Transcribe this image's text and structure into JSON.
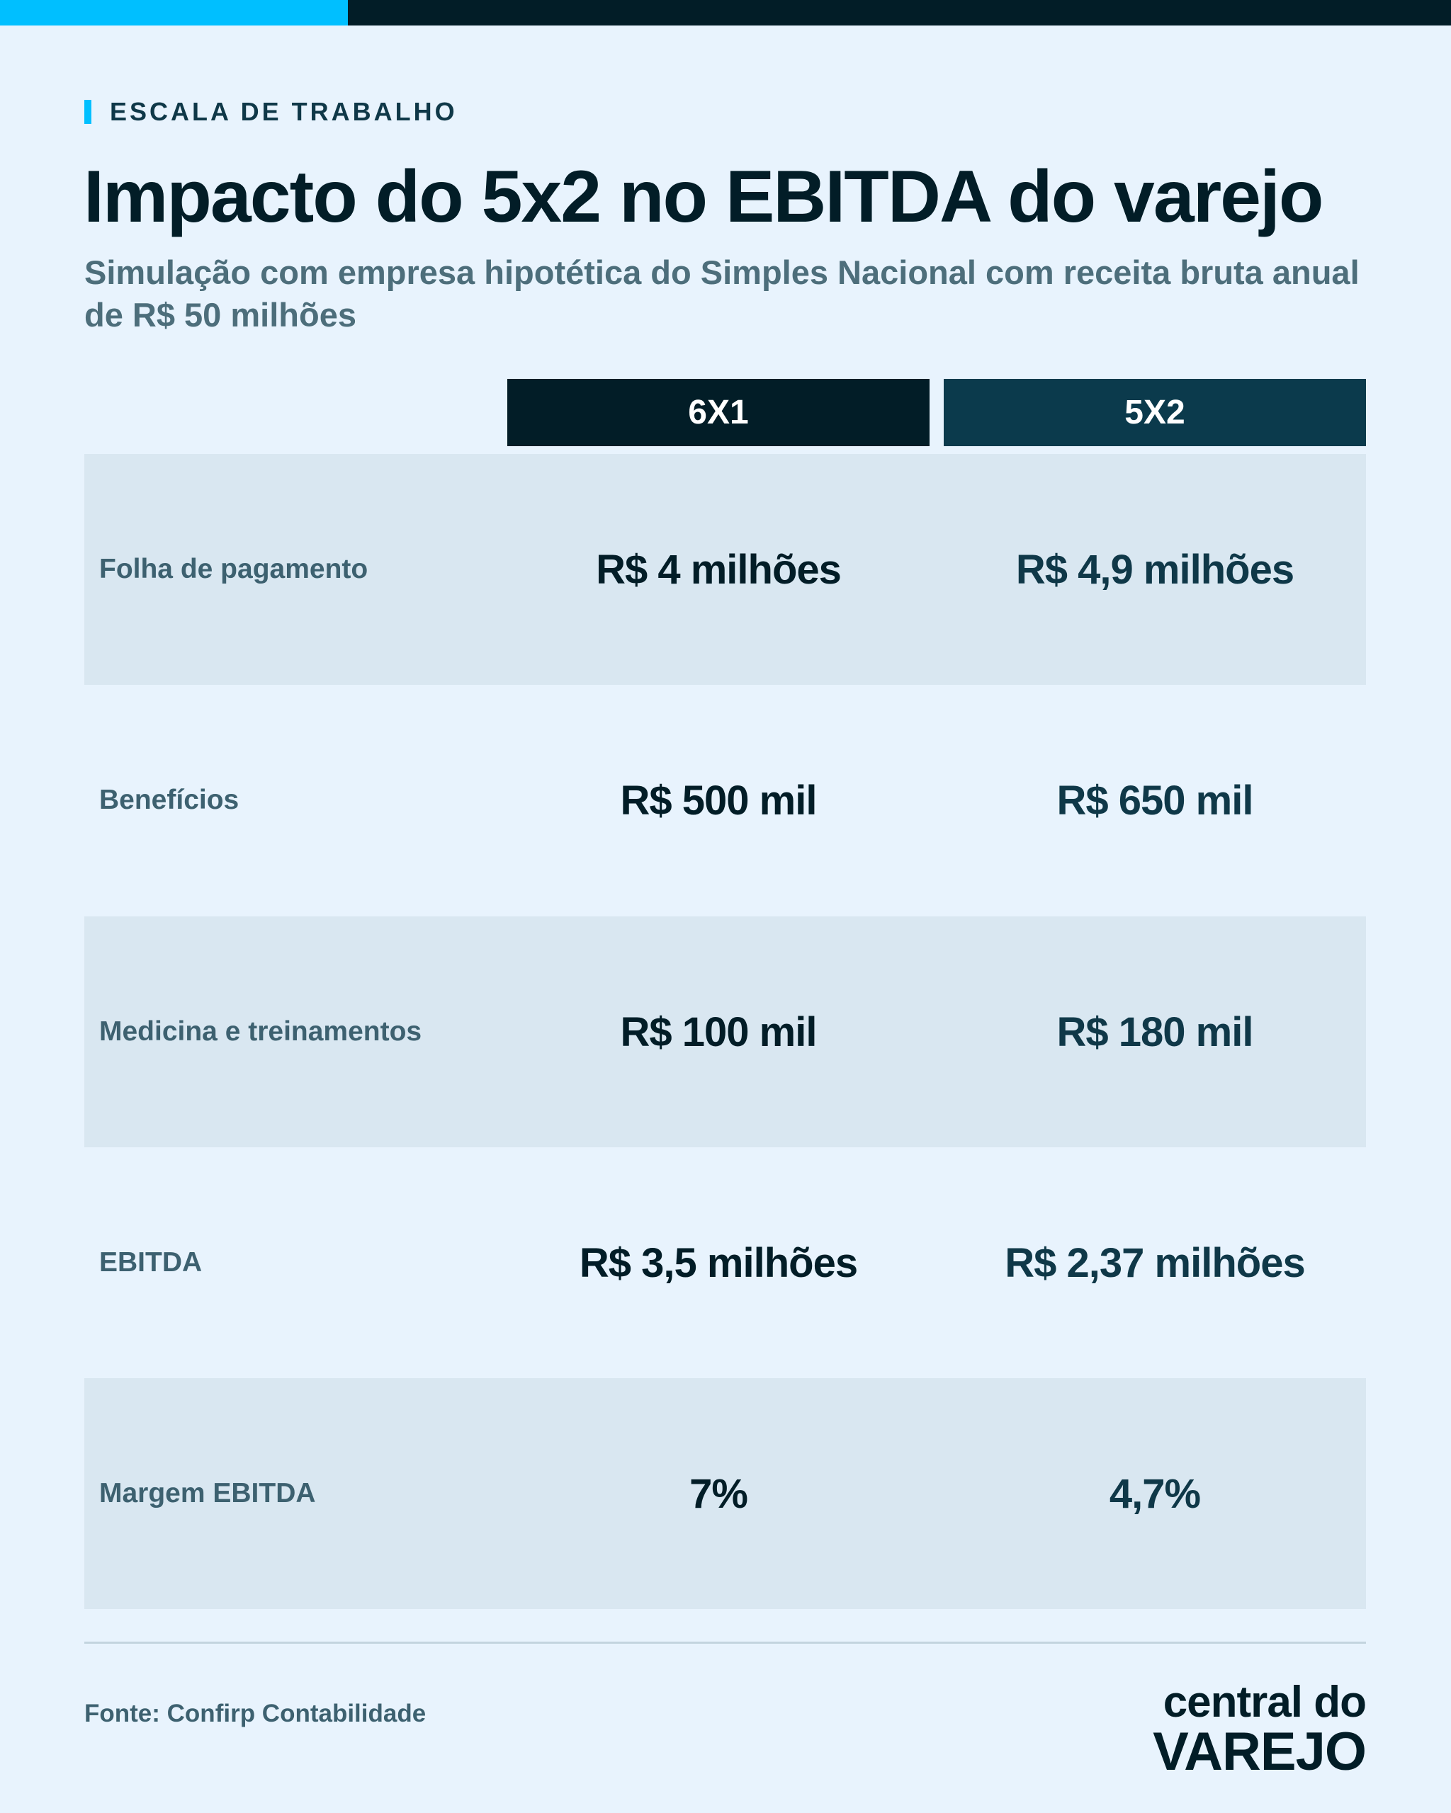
{
  "eyebrow": "ESCALA DE TRABALHO",
  "title": "Impacto do 5x2 no EBITDA do varejo",
  "subtitle": "Simulação com empresa hipotética do Simples Nacional com receita bruta anual de R$ 50 milhões",
  "columns": [
    "6X1",
    "5X2"
  ],
  "rows": [
    {
      "label": "Folha de pagamento",
      "v1": "R$ 4 milhões",
      "v2": "R$ 4,9 milhões"
    },
    {
      "label": "Benefícios",
      "v1": "R$ 500 mil",
      "v2": "R$ 650 mil"
    },
    {
      "label": "Medicina e treinamentos",
      "v1": "R$ 100 mil",
      "v2": "R$ 180 mil"
    },
    {
      "label": "EBITDA",
      "v1": "R$ 3,5 milhões",
      "v2": "R$ 2,37 milhões"
    },
    {
      "label": "Margem EBITDA",
      "v1": "7%",
      "v2": "4,7%"
    }
  ],
  "source": {
    "label": "Fonte:",
    "value": "Confirp Contabilidade"
  },
  "logo": {
    "line1": "central do",
    "line2": "VAREJO"
  },
  "colors": {
    "background": "#e8f3fd",
    "accent": "#00bfff",
    "dark": "#021d27",
    "header_6x1": "#021d27",
    "header_5x2": "#0b3a4c",
    "row_shaded": "#d9e7f1"
  }
}
